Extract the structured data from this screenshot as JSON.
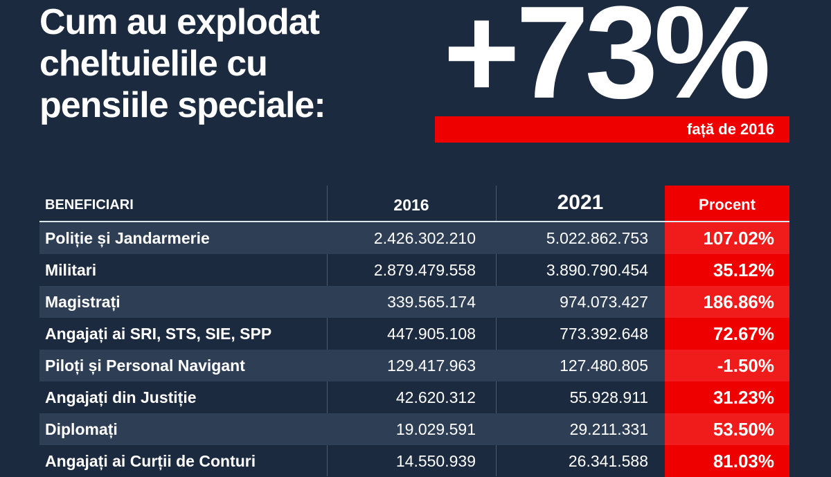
{
  "title_lines": [
    "Cum au explodat",
    "cheltuielile cu",
    "pensiile speciale:"
  ],
  "headline_value": "+73%",
  "headline_caption": "față de 2016",
  "colors": {
    "background": "#1b2a3e",
    "accent": "#ee0000",
    "stripe": "#2e3e55"
  },
  "chart_data": {
    "type": "table",
    "title": "Cum au explodat cheltuielile cu pensiile speciale: +73% față de 2016",
    "columns": [
      "BENEFICIARI",
      "2016",
      "2021",
      "Procent"
    ],
    "rows": [
      [
        "Poliție și Jandarmerie",
        "2.426.302.210",
        "5.022.862.753",
        "107.02%"
      ],
      [
        "Militari",
        "2.879.479.558",
        "3.890.790.454",
        "35.12%"
      ],
      [
        "Magistrați",
        "339.565.174",
        "974.073.427",
        "186.86%"
      ],
      [
        "Angajați ai SRI, STS, SIE, SPP",
        "447.905.108",
        "773.392.648",
        "72.67%"
      ],
      [
        "Piloți și Personal Navigant",
        "129.417.963",
        "127.480.805",
        "-1.50%"
      ],
      [
        "Angajați din Justiție",
        "42.620.312",
        "55.928.911",
        "31.23%"
      ],
      [
        "Diplomați",
        "19.029.591",
        "29.211.331",
        "53.50%"
      ],
      [
        "Angajați ai Curții de Conturi",
        "14.550.939",
        "26.341.588",
        "81.03%"
      ]
    ]
  }
}
